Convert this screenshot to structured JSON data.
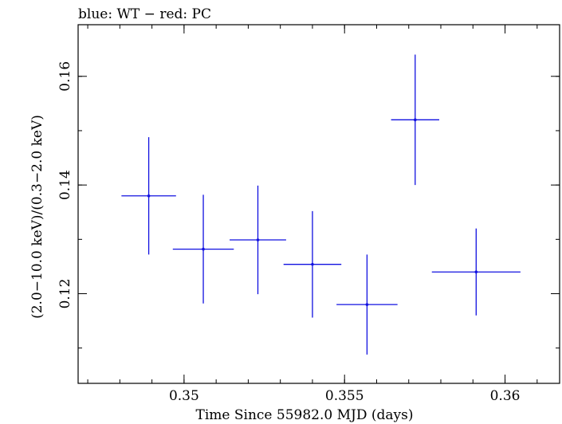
{
  "chart_data": {
    "type": "scatter",
    "title": "blue: WT − red: PC",
    "xlabel": "Time Since 55982.0 MJD (days)",
    "ylabel": "(2.0−10.0 keV)/(0.3−2.0 keV)",
    "xlim": [
      0.3467,
      0.3617
    ],
    "ylim": [
      0.1035,
      0.1695
    ],
    "x_ticks": [
      {
        "value": 0.35,
        "label": "0.35"
      },
      {
        "value": 0.355,
        "label": "0.355"
      },
      {
        "value": 0.36,
        "label": "0.36"
      }
    ],
    "x_minor_step": 0.001,
    "y_ticks": [
      {
        "value": 0.12,
        "label": "0.12"
      },
      {
        "value": 0.14,
        "label": "0.14"
      },
      {
        "value": 0.16,
        "label": "0.16"
      }
    ],
    "y_minor_step": 0.01,
    "series": [
      {
        "name": "WT",
        "color": "#1010e0",
        "points": [
          {
            "x": 0.3489,
            "xerr": 0.00085,
            "y": 0.138,
            "yerr": 0.0108
          },
          {
            "x": 0.3506,
            "xerr": 0.00095,
            "y": 0.1282,
            "yerr": 0.01
          },
          {
            "x": 0.3523,
            "xerr": 0.00088,
            "y": 0.1299,
            "yerr": 0.01
          },
          {
            "x": 0.354,
            "xerr": 0.0009,
            "y": 0.1254,
            "yerr": 0.0098
          },
          {
            "x": 0.3557,
            "xerr": 0.00095,
            "y": 0.118,
            "yerr": 0.0092
          },
          {
            "x": 0.3572,
            "xerr": 0.00075,
            "y": 0.152,
            "yerr": 0.012
          },
          {
            "x": 0.3591,
            "xerr": 0.00138,
            "y": 0.124,
            "yerr": 0.008
          }
        ]
      }
    ]
  }
}
